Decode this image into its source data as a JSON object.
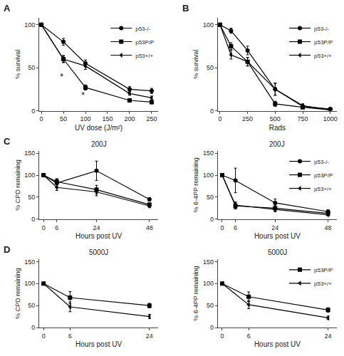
{
  "chart_data": [
    {
      "type": "line",
      "panel_label": "A",
      "xlabel": "UV dose (J/m²)",
      "ylabel": "% survival",
      "xlim": [
        -5,
        265
      ],
      "ylim": [
        0,
        108
      ],
      "xticks": [
        0,
        50,
        100,
        150,
        200,
        250
      ],
      "yticks": [
        0,
        50,
        100
      ],
      "grid": false,
      "color": "black",
      "legend": "upper right",
      "series": [
        {
          "name": "p53-/-",
          "marker": "circle",
          "x": [
            0,
            50,
            100,
            200,
            250
          ],
          "values": [
            100,
            80,
            55,
            25,
            23
          ],
          "yerr": [
            1,
            4,
            4,
            3,
            3
          ]
        },
        {
          "name": "p53P/P",
          "marker": "square",
          "x": [
            0,
            50,
            100,
            200,
            250
          ],
          "values": [
            100,
            60,
            27,
            12,
            10
          ],
          "yerr": [
            1,
            4,
            3,
            2,
            2
          ]
        },
        {
          "name": "p53+/+",
          "marker": "triangle-left",
          "x": [
            0,
            50,
            100,
            200,
            250
          ],
          "values": [
            100,
            60,
            52,
            20,
            15
          ],
          "yerr": [
            1,
            4,
            4,
            2,
            2
          ]
        }
      ],
      "annotations": [
        {
          "x": 46,
          "y": 40,
          "text": "*"
        },
        {
          "x": 94,
          "y": 18,
          "text": "*"
        }
      ]
    },
    {
      "type": "line",
      "panel_label": "B",
      "xlabel": "Rads",
      "ylabel": "% survival",
      "xlim": [
        -20,
        1060
      ],
      "ylim": [
        0,
        108
      ],
      "xticks": [
        0,
        250,
        500,
        750,
        1000
      ],
      "yticks": [
        0,
        50,
        100
      ],
      "grid": false,
      "color": "black",
      "legend": "upper right",
      "series": [
        {
          "name": "p53-/-",
          "marker": "circle",
          "x": [
            0,
            100,
            250,
            500,
            750,
            1000
          ],
          "values": [
            100,
            93,
            70,
            25,
            5,
            2
          ],
          "yerr": [
            1,
            3,
            5,
            7,
            2,
            1
          ]
        },
        {
          "name": "p53P/P",
          "marker": "square",
          "x": [
            0,
            100,
            250,
            500,
            750,
            1000
          ],
          "values": [
            100,
            75,
            57,
            8,
            4,
            1
          ],
          "yerr": [
            1,
            4,
            5,
            3,
            1,
            0.5
          ]
        },
        {
          "name": "p53+/+",
          "marker": "triangle-left",
          "x": [
            0,
            100,
            250,
            500,
            750,
            1000
          ],
          "values": [
            100,
            65,
            57,
            25,
            6,
            1
          ],
          "yerr": [
            1,
            5,
            5,
            7,
            2,
            0.5
          ]
        }
      ]
    },
    {
      "type": "line",
      "panel_label": "C",
      "title": "200J",
      "xlabel": "Hours post UV",
      "ylabel": "% CPD remaining",
      "xlim": [
        -2,
        52
      ],
      "ylim": [
        0,
        155
      ],
      "xticks": [
        0,
        6,
        24,
        48
      ],
      "yticks": [
        0,
        50,
        100,
        150
      ],
      "grid": false,
      "color": "black",
      "series": [
        {
          "name": "p53-/-",
          "marker": "circle",
          "x": [
            0,
            6,
            24,
            48
          ],
          "values": [
            100,
            82,
            110,
            45
          ],
          "yerr": [
            1,
            9,
            22,
            4
          ]
        },
        {
          "name": "p53P/P",
          "marker": "square",
          "x": [
            0,
            6,
            24,
            48
          ],
          "values": [
            100,
            85,
            67,
            33
          ],
          "yerr": [
            1,
            7,
            10,
            4
          ]
        },
        {
          "name": "p53+/+",
          "marker": "triangle-left",
          "x": [
            0,
            6,
            24,
            48
          ],
          "values": [
            100,
            72,
            62,
            30
          ],
          "yerr": [
            1,
            7,
            9,
            4
          ]
        }
      ]
    },
    {
      "type": "line",
      "title": "200J",
      "xlabel": "Hours post UV",
      "ylabel": "% 6-4PP remaining",
      "xlim": [
        -2,
        52
      ],
      "ylim": [
        0,
        155
      ],
      "xticks": [
        0,
        6,
        24,
        48
      ],
      "yticks": [
        0,
        50,
        100,
        150
      ],
      "grid": false,
      "color": "black",
      "legend": "upper right",
      "series": [
        {
          "name": "p53-/-",
          "marker": "circle",
          "x": [
            0,
            6,
            24,
            48
          ],
          "values": [
            100,
            88,
            37,
            17
          ],
          "yerr": [
            1,
            28,
            9,
            4
          ]
        },
        {
          "name": "p53P/P",
          "marker": "square",
          "x": [
            0,
            6,
            24,
            48
          ],
          "values": [
            100,
            30,
            25,
            13
          ],
          "yerr": [
            1,
            7,
            7,
            3
          ]
        },
        {
          "name": "p53+/+",
          "marker": "triangle-left",
          "x": [
            0,
            6,
            24,
            48
          ],
          "values": [
            100,
            32,
            22,
            10
          ],
          "yerr": [
            1,
            7,
            5,
            3
          ]
        }
      ]
    },
    {
      "type": "line",
      "panel_label": "D",
      "title": "5000J",
      "xlabel": "Hours post UV",
      "ylabel": "% CPD remaining",
      "xlim": [
        -1,
        26
      ],
      "ylim": [
        0,
        155
      ],
      "xticks": [
        0,
        6,
        24
      ],
      "yticks": [
        0,
        50,
        100,
        150
      ],
      "grid": false,
      "color": "black",
      "series": [
        {
          "name": "p53P/P",
          "marker": "square",
          "x": [
            0,
            6,
            24
          ],
          "values": [
            100,
            68,
            50
          ],
          "yerr": [
            1,
            14,
            5
          ]
        },
        {
          "name": "p53+/+",
          "marker": "triangle-left",
          "x": [
            0,
            6,
            24
          ],
          "values": [
            100,
            47,
            25
          ],
          "yerr": [
            1,
            11,
            5
          ]
        }
      ]
    },
    {
      "type": "line",
      "title": "5000J",
      "xlabel": "Hours post UV",
      "ylabel": "% 6-4PP remaining",
      "xlim": [
        -1,
        26
      ],
      "ylim": [
        0,
        155
      ],
      "xticks": [
        0,
        6,
        24
      ],
      "yticks": [
        0,
        50,
        100,
        150
      ],
      "grid": false,
      "color": "black",
      "legend": "upper right",
      "series": [
        {
          "name": "p53P/P",
          "marker": "square",
          "x": [
            0,
            6,
            24
          ],
          "values": [
            100,
            70,
            40
          ],
          "yerr": [
            1,
            11,
            5
          ]
        },
        {
          "name": "p53+/+",
          "marker": "triangle-left",
          "x": [
            0,
            6,
            24
          ],
          "values": [
            100,
            52,
            22
          ],
          "yerr": [
            1,
            9,
            4
          ]
        }
      ]
    }
  ]
}
